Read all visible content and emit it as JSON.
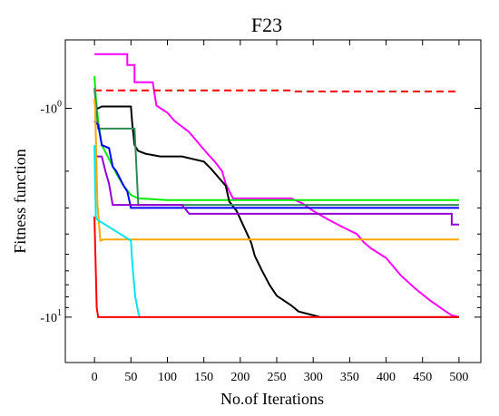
{
  "chart_data": {
    "type": "line",
    "title": "F23",
    "xlabel": "No.of Iterations",
    "ylabel": "Fitness function",
    "xlim": [
      -40,
      530
    ],
    "ylim": [
      -16.5,
      -0.47
    ],
    "yscale": "log-negative",
    "grid": false,
    "legend": "none",
    "x_ticks": [
      0,
      50,
      100,
      150,
      200,
      250,
      300,
      350,
      400,
      450,
      500
    ],
    "y_ticks": [
      {
        "value": -1,
        "base": "-10",
        "exp": "0"
      },
      {
        "value": -10,
        "base": "-10",
        "exp": "1"
      }
    ],
    "series": [
      {
        "color": "#ff00ff",
        "dash": false,
        "points": [
          [
            0,
            -0.55
          ],
          [
            45,
            -0.55
          ],
          [
            45,
            -0.62
          ],
          [
            55,
            -0.62
          ],
          [
            55,
            -0.75
          ],
          [
            80,
            -0.75
          ],
          [
            85,
            -0.97
          ],
          [
            100,
            -1.05
          ],
          [
            110,
            -1.15
          ],
          [
            130,
            -1.3
          ],
          [
            145,
            -1.5
          ],
          [
            155,
            -1.65
          ],
          [
            165,
            -1.8
          ],
          [
            175,
            -2.0
          ],
          [
            180,
            -2.3
          ],
          [
            190,
            -2.7
          ],
          [
            210,
            -2.7
          ],
          [
            240,
            -2.7
          ],
          [
            270,
            -2.7
          ],
          [
            285,
            -2.85
          ],
          [
            300,
            -3.1
          ],
          [
            320,
            -3.4
          ],
          [
            340,
            -3.7
          ],
          [
            360,
            -4.0
          ],
          [
            370,
            -4.4
          ],
          [
            380,
            -4.7
          ],
          [
            400,
            -5.2
          ],
          [
            420,
            -6.3
          ],
          [
            440,
            -7.3
          ],
          [
            460,
            -8.3
          ],
          [
            480,
            -9.3
          ],
          [
            490,
            -9.8
          ],
          [
            500,
            -10.0
          ]
        ]
      },
      {
        "color": "#ff0000",
        "dash": true,
        "points": [
          [
            0,
            -0.82
          ],
          [
            270,
            -0.82
          ],
          [
            275,
            -0.83
          ],
          [
            500,
            -0.83
          ]
        ]
      },
      {
        "color": "#00ee00",
        "dash": false,
        "points": [
          [
            0,
            -0.7
          ],
          [
            2,
            -0.9
          ],
          [
            5,
            -1.15
          ],
          [
            10,
            -1.5
          ],
          [
            20,
            -1.75
          ],
          [
            30,
            -2.05
          ],
          [
            40,
            -2.35
          ],
          [
            50,
            -2.6
          ],
          [
            60,
            -2.7
          ],
          [
            100,
            -2.75
          ],
          [
            500,
            -2.75
          ]
        ]
      },
      {
        "color": "#000000",
        "dash": false,
        "points": [
          [
            0,
            -1.0
          ],
          [
            5,
            -1.0
          ],
          [
            10,
            -0.98
          ],
          [
            50,
            -0.98
          ],
          [
            52,
            -1.2
          ],
          [
            55,
            -1.5
          ],
          [
            60,
            -1.6
          ],
          [
            70,
            -1.65
          ],
          [
            90,
            -1.7
          ],
          [
            120,
            -1.7
          ],
          [
            150,
            -1.8
          ],
          [
            160,
            -1.95
          ],
          [
            180,
            -2.35
          ],
          [
            185,
            -2.8
          ],
          [
            195,
            -3.1
          ],
          [
            205,
            -3.7
          ],
          [
            215,
            -4.4
          ],
          [
            220,
            -5.1
          ],
          [
            230,
            -6.0
          ],
          [
            240,
            -7.0
          ],
          [
            250,
            -7.9
          ],
          [
            270,
            -8.8
          ],
          [
            280,
            -9.4
          ],
          [
            300,
            -9.8
          ],
          [
            310,
            -10.0
          ],
          [
            500,
            -10.0
          ]
        ]
      },
      {
        "color": "#2e8b57",
        "dash": false,
        "points": [
          [
            0,
            -0.8
          ],
          [
            5,
            -1.25
          ],
          [
            55,
            -1.25
          ],
          [
            60,
            -2.9
          ],
          [
            500,
            -2.9
          ]
        ]
      },
      {
        "color": "#0000ff",
        "dash": false,
        "points": [
          [
            0,
            -1.15
          ],
          [
            5,
            -1.2
          ],
          [
            10,
            -1.5
          ],
          [
            20,
            -1.55
          ],
          [
            25,
            -1.9
          ],
          [
            30,
            -2.0
          ],
          [
            40,
            -2.35
          ],
          [
            45,
            -2.5
          ],
          [
            50,
            -3.0
          ],
          [
            500,
            -3.0
          ]
        ]
      },
      {
        "color": "#9400d3",
        "dash": false,
        "points": [
          [
            0,
            -1.7
          ],
          [
            10,
            -1.7
          ],
          [
            15,
            -2.0
          ],
          [
            20,
            -2.3
          ],
          [
            25,
            -2.9
          ],
          [
            120,
            -2.9
          ],
          [
            130,
            -3.2
          ],
          [
            490,
            -3.2
          ],
          [
            490,
            -3.6
          ],
          [
            500,
            -3.6
          ]
        ]
      },
      {
        "color": "#ffa500",
        "dash": false,
        "points": [
          [
            0,
            -0.9
          ],
          [
            1,
            -1.0
          ],
          [
            4,
            -2.9
          ],
          [
            8,
            -4.3
          ],
          [
            12,
            -4.25
          ],
          [
            500,
            -4.25
          ]
        ]
      },
      {
        "color": "#00e5ee",
        "dash": false,
        "points": [
          [
            0,
            -1.5
          ],
          [
            1,
            -2.4
          ],
          [
            2,
            -3.3
          ],
          [
            3,
            -3.4
          ],
          [
            50,
            -4.3
          ],
          [
            52,
            -5.6
          ],
          [
            56,
            -8.0
          ],
          [
            60,
            -9.5
          ],
          [
            62,
            -10.0
          ]
        ]
      },
      {
        "color": "#ff0000",
        "dash": false,
        "points": [
          [
            0,
            -3.3
          ],
          [
            3,
            -9.0
          ],
          [
            5,
            -10.0
          ],
          [
            500,
            -10.0
          ]
        ]
      }
    ]
  }
}
